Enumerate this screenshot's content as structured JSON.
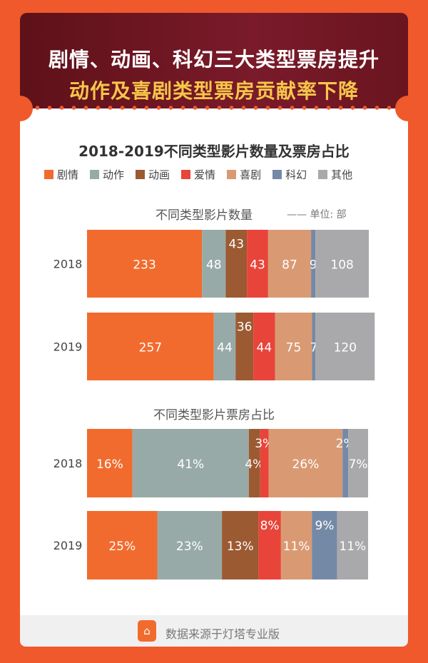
{
  "header": {
    "line1": "剧情、动画、科幻三大类型票房提升",
    "line2": "动作及喜剧类型票房贡献率下降"
  },
  "footer": {
    "source": "数据来源于灯塔专业版"
  },
  "chart_data": [
    {
      "type": "bar",
      "stacked": true,
      "orientation": "horizontal",
      "title": "2018-2019不同类型影片数量及票房占比",
      "subtitle": "不同类型影片数量",
      "unit_label": "—— 单位: 部",
      "categories": [
        "2018",
        "2019"
      ],
      "legend": [
        {
          "name": "剧情",
          "color": "#f26b2e"
        },
        {
          "name": "动作",
          "color": "#98aaa8"
        },
        {
          "name": "动画",
          "color": "#9b5a32"
        },
        {
          "name": "爱情",
          "color": "#e8443a"
        },
        {
          "name": "喜剧",
          "color": "#d99a73"
        },
        {
          "name": "科幻",
          "color": "#7489a6"
        },
        {
          "name": "其他",
          "color": "#a9a9ab"
        }
      ],
      "series": [
        {
          "name": "剧情",
          "values": [
            233,
            257
          ]
        },
        {
          "name": "动作",
          "values": [
            48,
            44
          ]
        },
        {
          "name": "动画",
          "values": [
            43,
            36
          ]
        },
        {
          "name": "爱情",
          "values": [
            43,
            44
          ]
        },
        {
          "name": "喜剧",
          "values": [
            87,
            75
          ]
        },
        {
          "name": "科幻",
          "values": [
            9,
            7
          ]
        },
        {
          "name": "其他",
          "values": [
            108,
            120
          ]
        }
      ]
    },
    {
      "type": "bar",
      "stacked": true,
      "orientation": "horizontal",
      "subtitle": "不同类型影片票房占比",
      "unit": "%",
      "categories": [
        "2018",
        "2019"
      ],
      "series": [
        {
          "name": "剧情",
          "values": [
            16,
            25
          ]
        },
        {
          "name": "动作",
          "values": [
            41,
            23
          ]
        },
        {
          "name": "动画",
          "values": [
            4,
            13
          ]
        },
        {
          "name": "爱情",
          "values": [
            3,
            8
          ]
        },
        {
          "name": "喜剧",
          "values": [
            26,
            11
          ]
        },
        {
          "name": "科幻",
          "values": [
            2,
            9
          ]
        },
        {
          "name": "其他",
          "values": [
            7,
            11
          ]
        }
      ]
    }
  ]
}
